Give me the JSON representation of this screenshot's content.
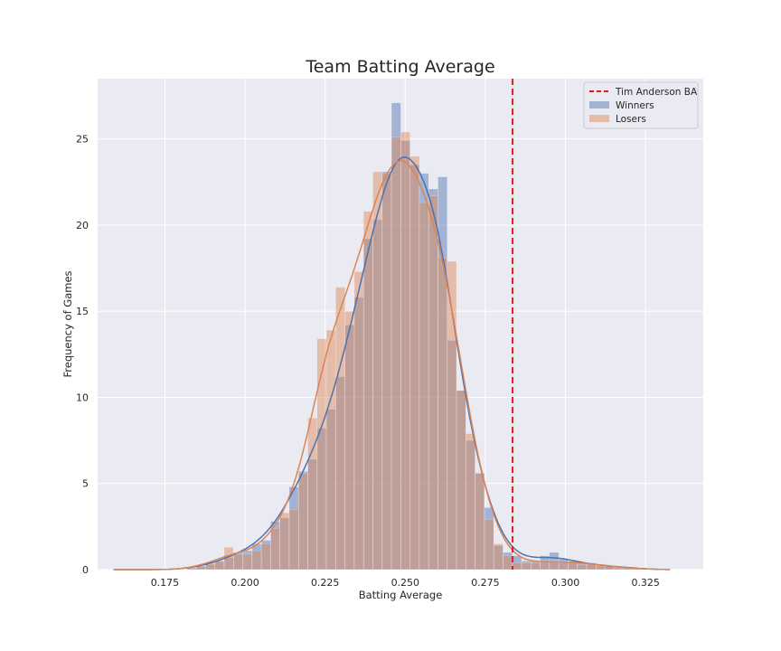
{
  "chart_data": {
    "type": "histogram",
    "title": "Team Batting Average",
    "xlabel": "Batting Average",
    "ylabel": "Frequency of Games",
    "xlim": [
      0.154,
      0.343
    ],
    "ylim": [
      0,
      28.5
    ],
    "x_ticks": [
      "0.175",
      "0.200",
      "0.225",
      "0.250",
      "0.275",
      "0.300",
      "0.325"
    ],
    "y_ticks": [
      "0",
      "5",
      "10",
      "15",
      "20",
      "25"
    ],
    "grid": true,
    "legend_position": "top-right",
    "reference_line": {
      "name": "Tim Anderson BA",
      "x": 0.2835,
      "color": "#e3191c",
      "style": "dashed"
    },
    "colors": {
      "winners": "#4c72b0",
      "losers": "#dd8452",
      "background": "#eaeaf2"
    },
    "bin_width": 0.0029,
    "series": [
      {
        "name": "Winners",
        "bin_starts": [
          0.1645,
          0.1674,
          0.1703,
          0.1732,
          0.1761,
          0.179,
          0.1819,
          0.1848,
          0.1877,
          0.1906,
          0.1935,
          0.1964,
          0.1993,
          0.2022,
          0.2051,
          0.208,
          0.2109,
          0.2138,
          0.2167,
          0.2196,
          0.2225,
          0.2254,
          0.2283,
          0.2312,
          0.2341,
          0.237,
          0.2399,
          0.2428,
          0.2457,
          0.2486,
          0.2515,
          0.2544,
          0.2573,
          0.2602,
          0.2631,
          0.266,
          0.2689,
          0.2718,
          0.2747,
          0.2776,
          0.2805,
          0.2834,
          0.2863,
          0.2892,
          0.2921,
          0.295,
          0.2979,
          0.3008,
          0.3037,
          0.3066,
          0.3095,
          0.3124,
          0.3153,
          0.3182,
          0.3211
        ],
        "values": [
          0,
          0,
          0,
          0,
          0,
          0,
          0.1,
          0.2,
          0.3,
          0.5,
          0.7,
          1.0,
          1.1,
          1.5,
          1.7,
          2.8,
          3.0,
          4.8,
          5.7,
          6.4,
          8.2,
          9.3,
          11.2,
          14.2,
          15.8,
          19.2,
          20.3,
          23.1,
          27.1,
          24.9,
          23.5,
          23.0,
          22.1,
          22.8,
          13.3,
          10.4,
          7.5,
          5.6,
          3.6,
          1.4,
          1.0,
          0.8,
          0.5,
          0.5,
          0.8,
          1.0,
          0.6,
          0.5,
          0.4,
          0.3,
          0.2,
          0.2,
          0.2,
          0.1,
          0.1
        ]
      },
      {
        "name": "Losers",
        "bin_starts": [
          0.1645,
          0.1674,
          0.1703,
          0.1732,
          0.1761,
          0.179,
          0.1819,
          0.1848,
          0.1877,
          0.1906,
          0.1935,
          0.1964,
          0.1993,
          0.2022,
          0.2051,
          0.208,
          0.2109,
          0.2138,
          0.2167,
          0.2196,
          0.2225,
          0.2254,
          0.2283,
          0.2312,
          0.2341,
          0.237,
          0.2399,
          0.2428,
          0.2457,
          0.2486,
          0.2515,
          0.2544,
          0.2573,
          0.2602,
          0.2631,
          0.266,
          0.2689,
          0.2718,
          0.2747,
          0.2776,
          0.2805,
          0.2834,
          0.2863,
          0.2892,
          0.2921,
          0.295,
          0.2979,
          0.3008,
          0.3037,
          0.3066,
          0.3095,
          0.3124,
          0.3153,
          0.3182,
          0.3211
        ],
        "values": [
          0,
          0,
          0,
          0,
          0,
          0,
          0.1,
          0.2,
          0.4,
          0.5,
          1.3,
          0.9,
          0.9,
          1.1,
          1.5,
          2.4,
          3.3,
          3.5,
          5.6,
          8.8,
          13.4,
          13.9,
          16.4,
          15.0,
          17.3,
          20.8,
          23.1,
          23.0,
          25.1,
          25.4,
          24.0,
          21.3,
          21.7,
          18.1,
          17.9,
          10.4,
          7.9,
          5.6,
          2.9,
          1.5,
          0.8,
          0.4,
          0.4,
          0.4,
          0.5,
          0.5,
          0.4,
          0.5,
          0.3,
          0.4,
          0.3,
          0.2,
          0.1,
          0.1,
          0.1
        ]
      }
    ]
  }
}
